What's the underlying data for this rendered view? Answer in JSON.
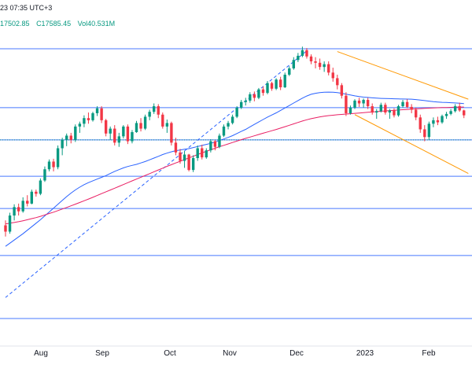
{
  "legend": {
    "time_text": "23 07:35 UTC+3",
    "low_text": "17502.85",
    "close_text": "C17585.45",
    "vol_text": "Vol40.531M"
  },
  "colors": {
    "up": "#089981",
    "down": "#f23645",
    "level_lines": "#2962ff",
    "sma_fast": "#2962ff",
    "sma_slow": "#e91e63",
    "trendline": "#2962ff",
    "channel": "#ff9800",
    "last_price_line": "#089981"
  },
  "chart_data": {
    "type": "candlestick",
    "x_axis_labels": [
      "Aug",
      "Sep",
      "Oct",
      "Nov",
      "Dec",
      "2023",
      "Feb"
    ],
    "horizontal_levels": [
      {
        "price": 18900,
        "note": ""
      },
      {
        "price": 18060,
        "note": ""
      },
      {
        "price": 17600,
        "note": ""
      },
      {
        "price": 17080,
        "note": ""
      },
      {
        "price": 16620,
        "note": ""
      },
      {
        "price": 15950,
        "note": ""
      },
      {
        "price": 15050,
        "note": ""
      }
    ],
    "candles": [
      [
        16380,
        16450,
        16220,
        16290
      ],
      [
        16290,
        16560,
        16260,
        16520
      ],
      [
        16520,
        16680,
        16450,
        16640
      ],
      [
        16640,
        16690,
        16520,
        16580
      ],
      [
        16580,
        16780,
        16560,
        16730
      ],
      [
        16730,
        16810,
        16650,
        16690
      ],
      [
        16690,
        16890,
        16680,
        16860
      ],
      [
        16860,
        16890,
        16790,
        16830
      ],
      [
        16830,
        17050,
        16810,
        17020
      ],
      [
        17020,
        17220,
        17000,
        17180
      ],
      [
        17180,
        17320,
        17150,
        17290
      ],
      [
        17290,
        17330,
        17150,
        17210
      ],
      [
        17210,
        17520,
        17180,
        17480
      ],
      [
        17480,
        17630,
        17380,
        17600
      ],
      [
        17600,
        17690,
        17510,
        17660
      ],
      [
        17660,
        17700,
        17550,
        17600
      ],
      [
        17600,
        17820,
        17570,
        17790
      ],
      [
        17790,
        17860,
        17700,
        17830
      ],
      [
        17830,
        17950,
        17780,
        17910
      ],
      [
        17910,
        17990,
        17830,
        17880
      ],
      [
        17880,
        18000,
        17860,
        17980
      ],
      [
        17980,
        18080,
        17940,
        18050
      ],
      [
        18050,
        18080,
        17840,
        17880
      ],
      [
        17880,
        17900,
        17650,
        17690
      ],
      [
        17690,
        17790,
        17600,
        17760
      ],
      [
        17760,
        17810,
        17520,
        17560
      ],
      [
        17560,
        17700,
        17500,
        17650
      ],
      [
        17650,
        17810,
        17620,
        17790
      ],
      [
        17790,
        17820,
        17540,
        17580
      ],
      [
        17580,
        17740,
        17550,
        17710
      ],
      [
        17710,
        17870,
        17700,
        17840
      ],
      [
        17840,
        17910,
        17720,
        17760
      ],
      [
        17760,
        17960,
        17740,
        17930
      ],
      [
        17930,
        18030,
        17880,
        18000
      ],
      [
        18000,
        18120,
        17970,
        18080
      ],
      [
        18080,
        18110,
        17910,
        17960
      ],
      [
        17960,
        17990,
        17760,
        17790
      ],
      [
        17790,
        17890,
        17700,
        17840
      ],
      [
        17840,
        17860,
        17520,
        17560
      ],
      [
        17560,
        17630,
        17380,
        17420
      ],
      [
        17420,
        17470,
        17260,
        17300
      ],
      [
        17300,
        17440,
        17200,
        17390
      ],
      [
        17390,
        17400,
        17150,
        17170
      ],
      [
        17170,
        17380,
        17140,
        17340
      ],
      [
        17340,
        17520,
        17300,
        17480
      ],
      [
        17480,
        17530,
        17320,
        17350
      ],
      [
        17350,
        17480,
        17330,
        17450
      ],
      [
        17450,
        17610,
        17420,
        17580
      ],
      [
        17580,
        17600,
        17450,
        17500
      ],
      [
        17500,
        17690,
        17480,
        17660
      ],
      [
        17660,
        17820,
        17640,
        17790
      ],
      [
        17790,
        17870,
        17750,
        17840
      ],
      [
        17840,
        17960,
        17820,
        17930
      ],
      [
        17930,
        18080,
        17910,
        18060
      ],
      [
        18060,
        18170,
        18040,
        18140
      ],
      [
        18140,
        18200,
        18090,
        18160
      ],
      [
        18160,
        18280,
        18130,
        18250
      ],
      [
        18250,
        18290,
        18150,
        18200
      ],
      [
        18200,
        18340,
        18180,
        18320
      ],
      [
        18320,
        18360,
        18230,
        18270
      ],
      [
        18270,
        18440,
        18250,
        18410
      ],
      [
        18410,
        18430,
        18300,
        18330
      ],
      [
        18330,
        18480,
        18310,
        18460
      ],
      [
        18460,
        18500,
        18310,
        18350
      ],
      [
        18350,
        18560,
        18340,
        18530
      ],
      [
        18530,
        18650,
        18510,
        18620
      ],
      [
        18620,
        18780,
        18600,
        18740
      ],
      [
        18740,
        18840,
        18710,
        18800
      ],
      [
        18800,
        18930,
        18780,
        18880
      ],
      [
        18880,
        18910,
        18760,
        18790
      ],
      [
        18790,
        18820,
        18680,
        18720
      ],
      [
        18720,
        18780,
        18620,
        18700
      ],
      [
        18700,
        18760,
        18600,
        18640
      ],
      [
        18640,
        18720,
        18570,
        18680
      ],
      [
        18680,
        18720,
        18520,
        18560
      ],
      [
        18560,
        18630,
        18430,
        18480
      ],
      [
        18480,
        18530,
        18320,
        18380
      ],
      [
        18380,
        18410,
        18190,
        18230
      ],
      [
        18230,
        18280,
        17940,
        17980
      ],
      [
        17980,
        18090,
        17960,
        18060
      ],
      [
        18060,
        18180,
        18040,
        18160
      ],
      [
        18160,
        18200,
        18070,
        18120
      ],
      [
        18120,
        18190,
        18060,
        18170
      ],
      [
        18170,
        18200,
        18040,
        18080
      ],
      [
        18080,
        18120,
        17960,
        17990
      ],
      [
        17990,
        18040,
        17900,
        18010
      ],
      [
        18010,
        18130,
        17990,
        18100
      ],
      [
        18100,
        18130,
        17960,
        17990
      ],
      [
        17990,
        18040,
        17900,
        18020
      ],
      [
        18020,
        18050,
        17920,
        17950
      ],
      [
        17950,
        18100,
        17930,
        18080
      ],
      [
        18080,
        18170,
        18060,
        18140
      ],
      [
        18140,
        18180,
        18050,
        18070
      ],
      [
        18070,
        18110,
        17980,
        18030
      ],
      [
        18030,
        18060,
        17880,
        17920
      ],
      [
        17920,
        17960,
        17700,
        17750
      ],
      [
        17750,
        17810,
        17580,
        17640
      ],
      [
        17640,
        17860,
        17600,
        17830
      ],
      [
        17830,
        17920,
        17780,
        17880
      ],
      [
        17880,
        17930,
        17810,
        17850
      ],
      [
        17850,
        17960,
        17830,
        17940
      ],
      [
        17940,
        18000,
        17900,
        17970
      ],
      [
        17970,
        18040,
        17950,
        18010
      ],
      [
        18010,
        18110,
        17990,
        18080
      ],
      [
        18080,
        18130,
        18000,
        18020
      ],
      [
        18020,
        18030,
        17910,
        17950
      ]
    ],
    "sma_fast": [
      16080,
      16125,
      16170,
      16215,
      16260,
      16310,
      16360,
      16410,
      16460,
      16515,
      16570,
      16625,
      16680,
      16735,
      16790,
      16840,
      16885,
      16925,
      16960,
      16990,
      17015,
      17040,
      17065,
      17090,
      17120,
      17150,
      17175,
      17200,
      17220,
      17235,
      17250,
      17270,
      17290,
      17315,
      17340,
      17365,
      17390,
      17410,
      17430,
      17445,
      17455,
      17465,
      17475,
      17490,
      17505,
      17520,
      17535,
      17550,
      17570,
      17590,
      17612,
      17635,
      17660,
      17690,
      17720,
      17750,
      17785,
      17820,
      17855,
      17890,
      17925,
      17955,
      17985,
      18020,
      18055,
      18090,
      18125,
      18160,
      18195,
      18225,
      18250,
      18265,
      18275,
      18280,
      18282,
      18280,
      18275,
      18265,
      18252,
      18240,
      18228,
      18218,
      18210,
      18205,
      18200,
      18195,
      18192,
      18190,
      18188,
      18186,
      18184,
      18183,
      18182,
      18180,
      18175,
      18168,
      18160,
      18152,
      18145,
      18140,
      18136,
      18133,
      18130,
      18127,
      18123,
      18118
    ],
    "sma_slow": [
      16400,
      16410,
      16420,
      16432,
      16445,
      16460,
      16475,
      16490,
      16508,
      16528,
      16548,
      16568,
      16590,
      16612,
      16635,
      16658,
      16682,
      16706,
      16730,
      16755,
      16780,
      16806,
      16832,
      16858,
      16884,
      16910,
      16936,
      16962,
      16988,
      17014,
      17040,
      17066,
      17092,
      17118,
      17144,
      17170,
      17196,
      17222,
      17246,
      17270,
      17294,
      17318,
      17342,
      17366,
      17390,
      17414,
      17436,
      17458,
      17480,
      17502,
      17522,
      17542,
      17562,
      17582,
      17602,
      17622,
      17640,
      17658,
      17676,
      17694,
      17712,
      17730,
      17748,
      17768,
      17788,
      17808,
      17828,
      17848,
      17868,
      17886,
      17902,
      17916,
      17928,
      17938,
      17946,
      17952,
      17958,
      17963,
      17968,
      17973,
      17978,
      17983,
      17988,
      17993,
      17998,
      18003,
      18008,
      18013,
      18018,
      18022,
      18026,
      18030,
      18034,
      18038,
      18042,
      18046,
      18050,
      18053,
      18056,
      18058,
      18060,
      18062,
      18064,
      18066,
      18068,
      18068
    ],
    "last_price": 17600,
    "trendline": {
      "from": [
        0,
        15350
      ],
      "to": [
        69,
        18870
      ]
    },
    "channel": {
      "upper": {
        "from": [
          76,
          18860
        ],
        "to": [
          106,
          18180
        ]
      },
      "lower": {
        "from": [
          80,
          17960
        ],
        "to": [
          106,
          17120
        ]
      }
    }
  }
}
